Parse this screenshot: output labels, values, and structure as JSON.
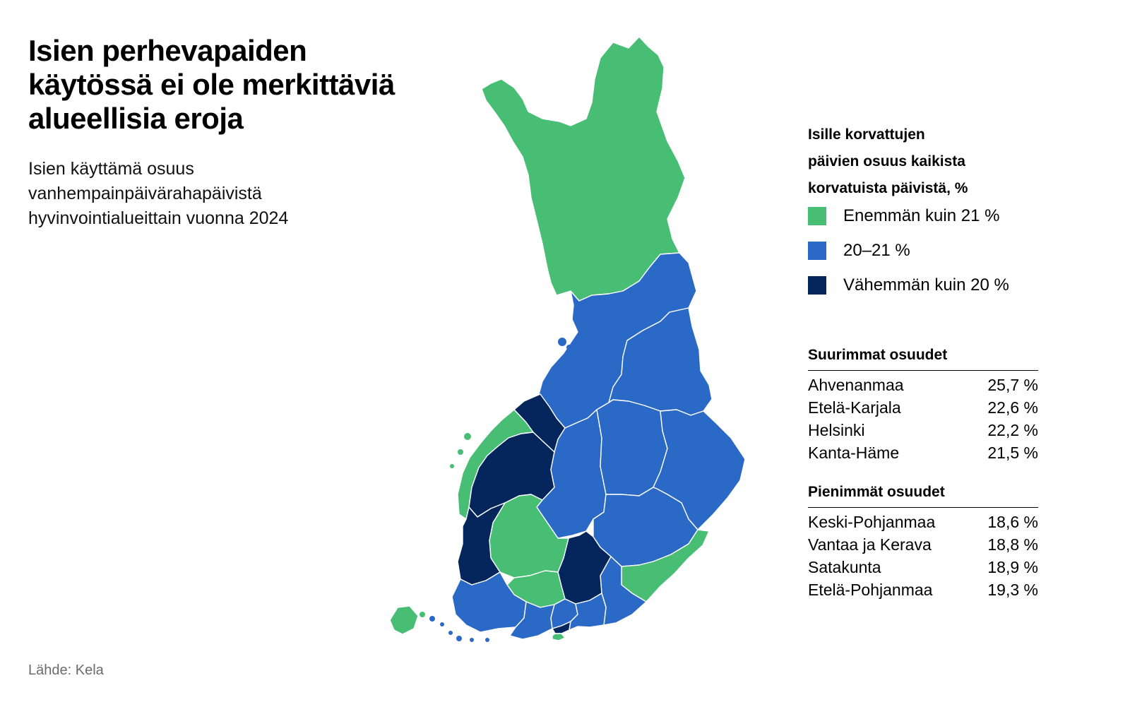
{
  "title_lines": [
    "Isien perhevapaiden",
    "käytössä ei ole merkittäviä",
    "alueellisia eroja"
  ],
  "subtitle_lines": [
    "Isien käyttämä osuus",
    "vanhempainpäivärahapäivistä",
    "hyvinvointialueittain vuonna 2024"
  ],
  "source": "Lähde: Kela",
  "legend": {
    "title_lines": [
      "Isille korvattujen",
      "päivien osuus kaikista",
      "korvatuista päivistä, %"
    ],
    "items": [
      {
        "label": "Enemmän kuin 21 %",
        "color": "#47be73"
      },
      {
        "label": "20–21 %",
        "color": "#2b69c7"
      },
      {
        "label": "Vähemmän kuin 20 %",
        "color": "#04265c"
      }
    ]
  },
  "top": {
    "heading": "Suurimmat osuudet",
    "rows": [
      {
        "name": "Ahvenanmaa",
        "value": "25,7 %"
      },
      {
        "name": "Etelä-Karjala",
        "value": "22,6 %"
      },
      {
        "name": "Helsinki",
        "value": "22,2 %"
      },
      {
        "name": "Kanta-Häme",
        "value": "21,5 %"
      }
    ]
  },
  "bottom": {
    "heading": "Pienimmät osuudet",
    "rows": [
      {
        "name": "Keski-Pohjanmaa",
        "value": "18,6 %"
      },
      {
        "name": "Vantaa ja Kerava",
        "value": "18,8 %"
      },
      {
        "name": "Satakunta",
        "value": "18,9 %"
      },
      {
        "name": "Etelä-Pohjanmaa",
        "value": "19,3 %"
      }
    ]
  },
  "map_categories": {
    "high": "#47be73",
    "mid": "#2b69c7",
    "low": "#04265c"
  }
}
